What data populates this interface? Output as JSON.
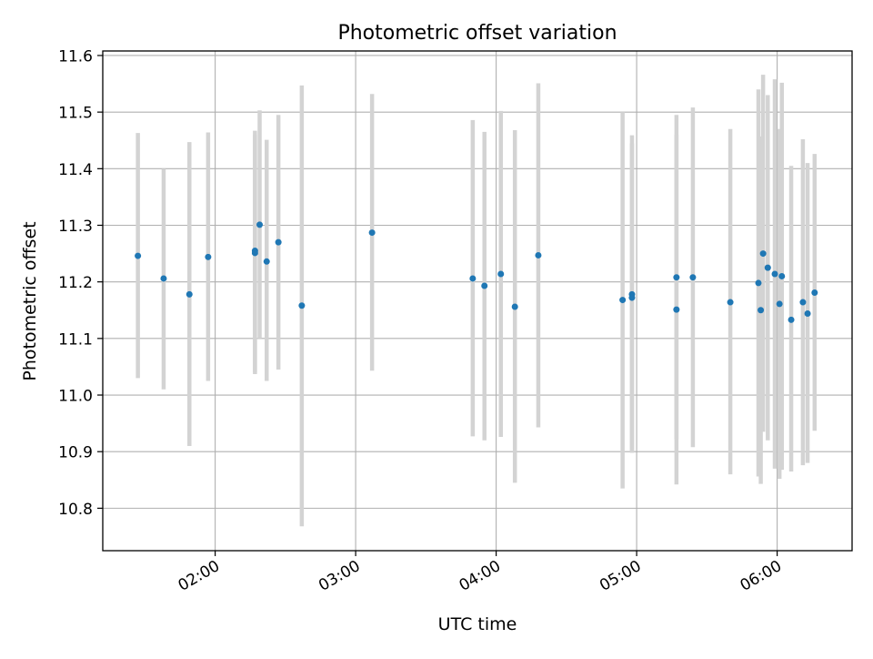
{
  "chart_data": {
    "type": "scatter",
    "title": "Photometric offset variation",
    "xlabel": "UTC time",
    "ylabel": "Photometric offset",
    "x_axis": "time",
    "xlim": [
      "01:12",
      "06:32"
    ],
    "ylim": [
      10.725,
      11.608
    ],
    "x_ticks": [
      "02:00",
      "03:00",
      "04:00",
      "05:00",
      "06:00"
    ],
    "y_ticks": [
      10.8,
      10.9,
      11.0,
      11.1,
      11.2,
      11.3,
      11.4,
      11.5,
      11.6
    ],
    "y_tick_labels": [
      "10.8",
      "10.9",
      "11.0",
      "11.1",
      "11.2",
      "11.3",
      "11.4",
      "11.5",
      "11.6"
    ],
    "grid": true,
    "point_color": "#1f77b4",
    "errorbar_color": "#d3d3d3",
    "points": [
      {
        "x": "01:27",
        "y": 11.246,
        "ylow": 11.03,
        "yhigh": 11.463
      },
      {
        "x": "01:38",
        "y": 11.206,
        "ylow": 11.01,
        "yhigh": 11.4
      },
      {
        "x": "01:49",
        "y": 11.178,
        "ylow": 10.91,
        "yhigh": 11.447
      },
      {
        "x": "01:57",
        "y": 11.244,
        "ylow": 11.025,
        "yhigh": 11.464
      },
      {
        "x": "02:17",
        "y": 11.255,
        "ylow": 11.037,
        "yhigh": 11.467
      },
      {
        "x": "02:17",
        "y": 11.251,
        "ylow": 11.04,
        "yhigh": 11.46
      },
      {
        "x": "02:19",
        "y": 11.301,
        "ylow": 11.1,
        "yhigh": 11.503
      },
      {
        "x": "02:22",
        "y": 11.236,
        "ylow": 11.025,
        "yhigh": 11.451
      },
      {
        "x": "02:27",
        "y": 11.27,
        "ylow": 11.045,
        "yhigh": 11.495
      },
      {
        "x": "02:37",
        "y": 11.158,
        "ylow": 10.768,
        "yhigh": 11.547
      },
      {
        "x": "03:07",
        "y": 11.287,
        "ylow": 11.043,
        "yhigh": 11.532
      },
      {
        "x": "03:50",
        "y": 11.206,
        "ylow": 10.927,
        "yhigh": 11.486
      },
      {
        "x": "03:55",
        "y": 11.193,
        "ylow": 10.92,
        "yhigh": 11.465
      },
      {
        "x": "04:02",
        "y": 11.214,
        "ylow": 10.926,
        "yhigh": 11.502
      },
      {
        "x": "04:08",
        "y": 11.156,
        "ylow": 10.845,
        "yhigh": 11.468
      },
      {
        "x": "04:18",
        "y": 11.247,
        "ylow": 10.943,
        "yhigh": 11.551
      },
      {
        "x": "04:54",
        "y": 11.168,
        "ylow": 10.835,
        "yhigh": 11.5
      },
      {
        "x": "04:58",
        "y": 11.178,
        "ylow": 10.898,
        "yhigh": 11.459
      },
      {
        "x": "04:58",
        "y": 11.172,
        "ylow": 10.9,
        "yhigh": 11.445
      },
      {
        "x": "05:17",
        "y": 11.208,
        "ylow": 10.922,
        "yhigh": 11.495
      },
      {
        "x": "05:17",
        "y": 11.151,
        "ylow": 10.842,
        "yhigh": 11.46
      },
      {
        "x": "05:24",
        "y": 11.208,
        "ylow": 10.908,
        "yhigh": 11.508
      },
      {
        "x": "05:40",
        "y": 11.164,
        "ylow": 10.86,
        "yhigh": 11.47
      },
      {
        "x": "05:52",
        "y": 11.198,
        "ylow": 10.856,
        "yhigh": 11.54
      },
      {
        "x": "05:53",
        "y": 11.15,
        "ylow": 10.843,
        "yhigh": 11.457
      },
      {
        "x": "05:54",
        "y": 11.25,
        "ylow": 10.935,
        "yhigh": 11.566
      },
      {
        "x": "05:56",
        "y": 11.225,
        "ylow": 10.92,
        "yhigh": 11.53
      },
      {
        "x": "05:59",
        "y": 11.214,
        "ylow": 10.87,
        "yhigh": 11.558
      },
      {
        "x": "06:01",
        "y": 11.161,
        "ylow": 10.852,
        "yhigh": 11.47
      },
      {
        "x": "06:02",
        "y": 11.21,
        "ylow": 10.868,
        "yhigh": 11.552
      },
      {
        "x": "06:06",
        "y": 11.133,
        "ylow": 10.865,
        "yhigh": 11.405
      },
      {
        "x": "06:11",
        "y": 11.164,
        "ylow": 10.876,
        "yhigh": 11.452
      },
      {
        "x": "06:13",
        "y": 11.144,
        "ylow": 10.88,
        "yhigh": 11.41
      },
      {
        "x": "06:16",
        "y": 11.181,
        "ylow": 10.937,
        "yhigh": 11.426
      }
    ]
  }
}
